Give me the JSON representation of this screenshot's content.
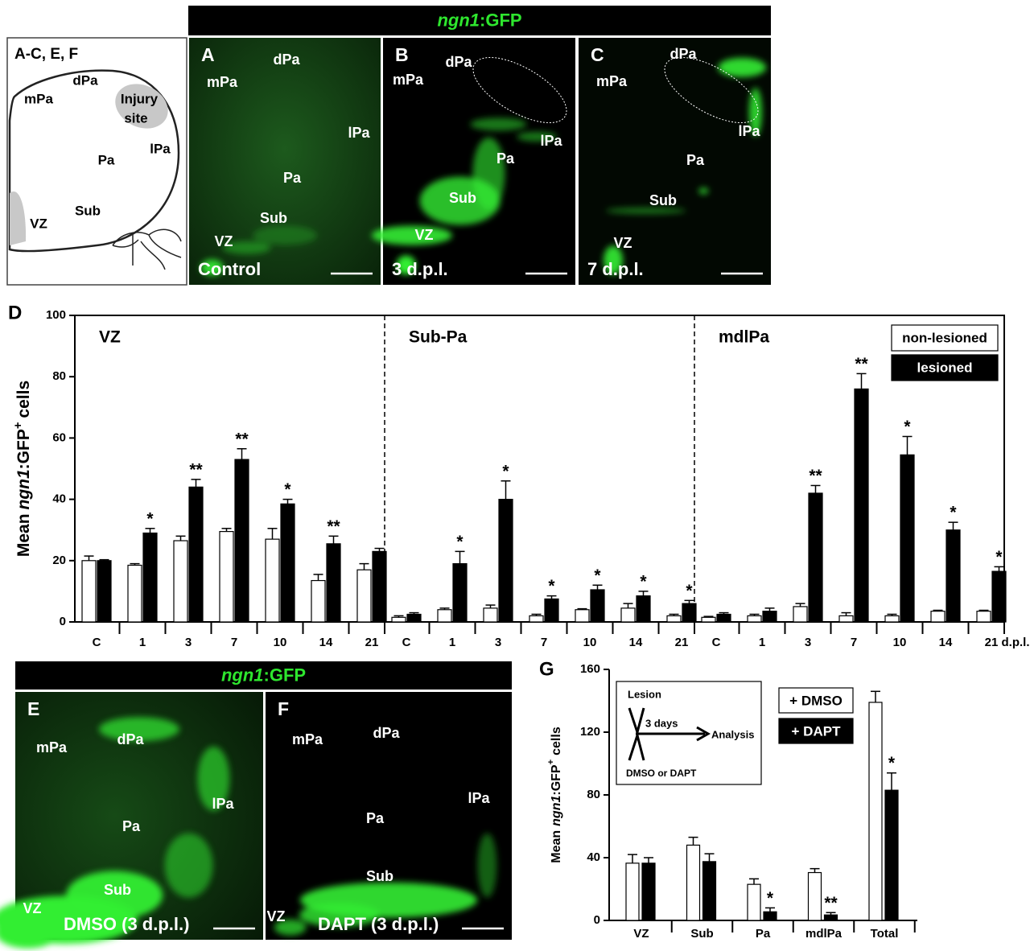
{
  "header": {
    "gene": "ngn1",
    "suffix": ":GFP"
  },
  "schematic": {
    "title": "A-C, E, F",
    "labels": [
      "dPa",
      "mPa",
      "Injury",
      "site",
      "lPa",
      "Pa",
      "Sub",
      "VZ"
    ]
  },
  "images": [
    {
      "letter": "A",
      "labels": [
        "dPa",
        "mPa",
        "lPa",
        "Pa",
        "Sub",
        "VZ"
      ],
      "caption": "Control"
    },
    {
      "letter": "B",
      "labels": [
        "dPa",
        "mPa",
        "lPa",
        "Pa",
        "Sub",
        "VZ"
      ],
      "caption": "3 d.p.l."
    },
    {
      "letter": "C",
      "labels": [
        "dPa",
        "mPa",
        "lPa",
        "Pa",
        "Sub",
        "VZ"
      ],
      "caption": "7 d.p.l."
    },
    {
      "letter": "E",
      "labels": [
        "dPa",
        "mPa",
        "lPa",
        "Pa",
        "Sub",
        "VZ"
      ],
      "caption": "DMSO (3 d.p.l.)"
    },
    {
      "letter": "F",
      "labels": [
        "dPa",
        "mPa",
        "lPa",
        "Pa",
        "Sub",
        "VZ"
      ],
      "caption": "DAPT (3 d.p.l.)"
    }
  ],
  "chart_data": [
    {
      "type": "grouped_bar",
      "panel": "D",
      "ylabel": {
        "prefix": "Mean",
        "gene": "ngn1",
        "marker": ":GFP",
        "sup": "+",
        "suffix": "cells"
      },
      "ylim": [
        0,
        100
      ],
      "yticks": [
        0,
        20,
        40,
        60,
        80,
        100
      ],
      "categories": [
        "C",
        "1",
        "3",
        "7",
        "10",
        "14",
        "21"
      ],
      "xunit": "d.p.l.",
      "series": [
        {
          "name": "non-lesioned",
          "color": "#ffffff"
        },
        {
          "name": "lesioned",
          "color": "#000000"
        }
      ],
      "groups": [
        {
          "name": "VZ",
          "values": [
            [
              20,
              18.5,
              26.5,
              29.5,
              27,
              13.5,
              17
            ],
            [
              20,
              29,
              44,
              53,
              38.5,
              25.5,
              23
            ]
          ],
          "errors": [
            [
              1.5,
              0.5,
              1.5,
              1,
              3.5,
              2,
              2
            ],
            [
              0.3,
              1.5,
              2.5,
              3.5,
              1.5,
              2.5,
              1
            ]
          ],
          "annotations": [
            null,
            "*",
            "**",
            "**",
            "*",
            "**",
            null
          ]
        },
        {
          "name": "Sub-Pa",
          "values": [
            [
              1.5,
              4,
              4.5,
              2,
              4,
              4.5,
              2
            ],
            [
              2.5,
              19,
              40,
              7.5,
              10.5,
              8.5,
              6
            ]
          ],
          "errors": [
            [
              0.5,
              0.5,
              1,
              0.5,
              0.3,
              1.5,
              0.5
            ],
            [
              0.5,
              4,
              6,
              1,
              1.5,
              1.5,
              1
            ]
          ],
          "annotations": [
            null,
            "*",
            "*",
            "*",
            "*",
            "*",
            "*"
          ]
        },
        {
          "name": "mdlPa",
          "values": [
            [
              1.5,
              2,
              5,
              2,
              2,
              3.5,
              3.5
            ],
            [
              2.5,
              3.5,
              42,
              76,
              54.5,
              30,
              16.5
            ]
          ],
          "errors": [
            [
              0.3,
              0.5,
              1,
              1,
              0.5,
              0.3,
              0.3
            ],
            [
              0.5,
              1,
              2.5,
              5,
              6,
              2.5,
              1.5
            ]
          ],
          "annotations": [
            null,
            null,
            "**",
            "**",
            "*",
            "*",
            "*"
          ]
        }
      ]
    },
    {
      "type": "bar",
      "panel": "G",
      "ylabel": {
        "prefix": "Mean",
        "gene": "ngn1",
        "marker": ":GFP",
        "sup": "+",
        "suffix": "cells"
      },
      "ylim": [
        0,
        160
      ],
      "yticks": [
        0,
        40,
        80,
        120,
        160
      ],
      "categories": [
        "VZ",
        "Sub",
        "Pa",
        "mdlPa",
        "Total"
      ],
      "series": [
        {
          "name": "+ DMSO",
          "color": "#ffffff",
          "values": [
            36.5,
            48,
            23,
            30.5,
            139
          ],
          "errors": [
            5.5,
            5,
            3.5,
            2.5,
            7
          ],
          "annotations": [
            null,
            null,
            null,
            null,
            null
          ]
        },
        {
          "name": "+ DAPT",
          "color": "#000000",
          "values": [
            36.5,
            37.5,
            5.5,
            3.5,
            83
          ],
          "errors": [
            3.5,
            5,
            2.5,
            1.5,
            11
          ],
          "annotations": [
            null,
            null,
            "*",
            "**",
            "*"
          ]
        }
      ],
      "inset": {
        "lesion": "Lesion",
        "interval": "3 days",
        "analysis": "Analysis",
        "treatment": "DMSO or DAPT"
      }
    }
  ]
}
